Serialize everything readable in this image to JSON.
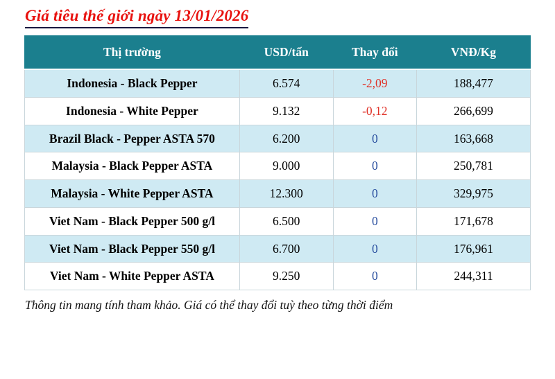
{
  "page": {
    "title": "Giá tiêu thế giới ngày 13/01/2026",
    "footnote": "Thông tin mang tính tham khảo. Giá có thể thay đổi tuỳ theo từng thời điểm"
  },
  "colors": {
    "header_bg": "#1b7f8e",
    "row_alt_bg": "#cfeaf3",
    "title_red": "#e8120f",
    "change_negative": "#e03127",
    "change_zero": "#2a4f9f"
  },
  "chart_data": {
    "type": "table",
    "title": "Giá tiêu thế giới ngày 13/01/2026",
    "columns": [
      "Thị trường",
      "USD/tấn",
      "Thay đổi",
      "VNĐ/Kg"
    ],
    "rows": [
      [
        "Indonesia - Black Pepper",
        "6.574",
        "-2,09",
        "188,477"
      ],
      [
        "Indonesia - White Pepper",
        "9.132",
        "-0,12",
        "266,699"
      ],
      [
        "Brazil Black - Pepper ASTA 570",
        "6.200",
        "0",
        "163,668"
      ],
      [
        "Malaysia - Black Pepper ASTA",
        "9.000",
        "0",
        "250,781"
      ],
      [
        "Malaysia - White Pepper ASTA",
        "12.300",
        "0",
        "329,975"
      ],
      [
        "Viet Nam - Black Pepper 500 g/l",
        "6.500",
        "0",
        "171,678"
      ],
      [
        "Viet Nam - Black Pepper 550 g/l",
        "6.700",
        "0",
        "176,961"
      ],
      [
        "Viet Nam - White Pepper ASTA",
        "9.250",
        "0",
        "244,311"
      ]
    ],
    "footnote": "Thông tin mang tính tham khảo. Giá có thể thay đổi tuỳ theo từng thời điểm",
    "layout": {
      "alternating_rows": true,
      "first_row_shaded": true,
      "alignment": "center"
    }
  }
}
